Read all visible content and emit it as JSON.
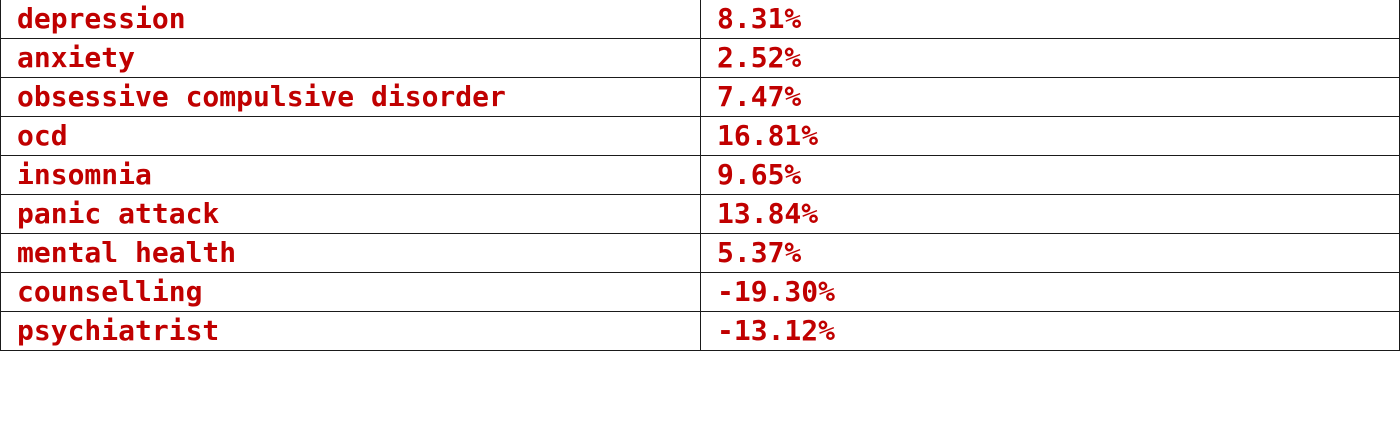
{
  "chart_data": {
    "type": "table",
    "rows": [
      {
        "term": "depression",
        "value": "8.31%"
      },
      {
        "term": "anxiety",
        "value": "2.52%"
      },
      {
        "term": "obsessive compulsive disorder",
        "value": "7.47%"
      },
      {
        "term": "ocd",
        "value": "16.81%"
      },
      {
        "term": "insomnia",
        "value": "9.65%"
      },
      {
        "term": "panic attack",
        "value": "13.84%"
      },
      {
        "term": "mental health",
        "value": "5.37%"
      },
      {
        "term": "counselling",
        "value": "-19.30%"
      },
      {
        "term": "psychiatrist",
        "value": "-13.12%"
      }
    ]
  },
  "colors": {
    "text": "#c00000",
    "border": "#1a1a1a",
    "background": "#ffffff"
  }
}
